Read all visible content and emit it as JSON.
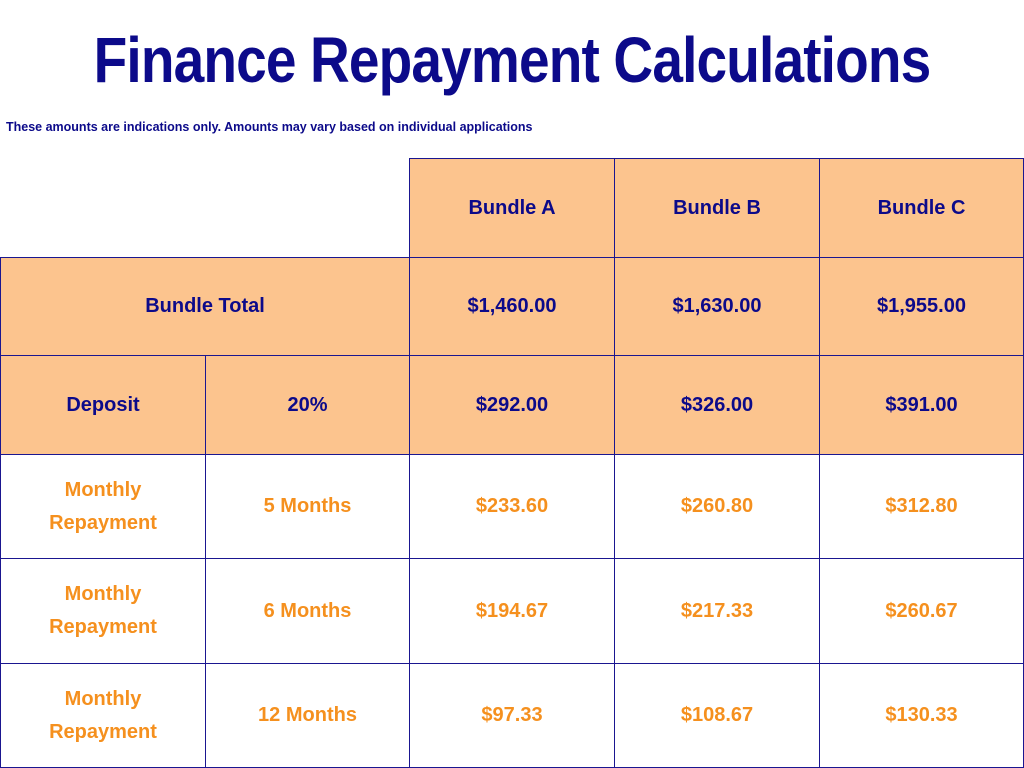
{
  "title": "Finance Repayment Calculations",
  "note": "These amounts are indications only. Amounts may vary based on individual applications",
  "headers": {
    "bundle_a": "Bundle A",
    "bundle_b": "Bundle B",
    "bundle_c": "Bundle C"
  },
  "bundle_total": {
    "label": "Bundle Total",
    "values": [
      "$1,460.00",
      "$1,630.00",
      "$1,955.00"
    ]
  },
  "deposit": {
    "label": "Deposit",
    "percent": "20%",
    "values": [
      "$292.00",
      "$326.00",
      "$391.00"
    ]
  },
  "repayments": [
    {
      "label": "Monthly Repayment",
      "term": "5 Months",
      "values": [
        "$233.60",
        "$260.80",
        "$312.80"
      ]
    },
    {
      "label": "Monthly Repayment",
      "term": "6 Months",
      "values": [
        "$194.67",
        "$217.33",
        "$260.67"
      ]
    },
    {
      "label": "Monthly Repayment",
      "term": "12 Months",
      "values": [
        "$97.33",
        "$108.67",
        "$130.33"
      ]
    }
  ],
  "colors": {
    "navy": "#0c0a8a",
    "peach": "#fcc48e",
    "orange": "#f5901e"
  }
}
